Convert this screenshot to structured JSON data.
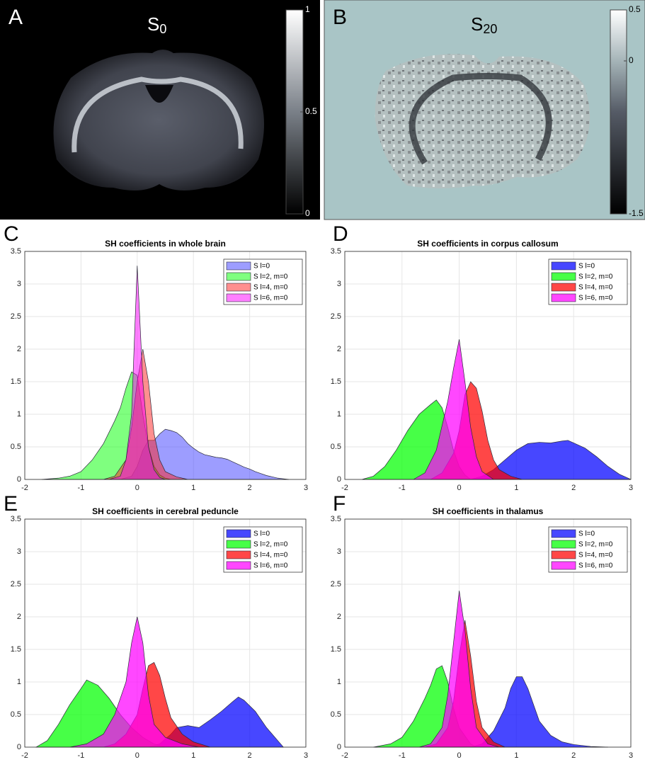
{
  "images": [
    {
      "panel_label": "A",
      "title": {
        "base": "S",
        "sub": "0"
      },
      "colorbar": {
        "lim": [
          0,
          1
        ],
        "ticks": [
          0,
          0.5,
          1
        ]
      }
    },
    {
      "panel_label": "B",
      "title": {
        "base": "S",
        "sub": "20"
      },
      "colorbar": {
        "lim": [
          -1.5,
          0.5
        ],
        "ticks": [
          -1.5,
          0,
          0.5
        ]
      }
    }
  ],
  "chart_data": [
    {
      "type": "area",
      "panel_label": "C",
      "title": "SH coefficients in whole brain",
      "fill_opacity": 0.5,
      "xlim": [
        -2,
        3
      ],
      "xticks": [
        -2,
        -1,
        0,
        1,
        2,
        3
      ],
      "ylim": [
        0,
        3.5
      ],
      "yticks": [
        0,
        0.5,
        1,
        1.5,
        2,
        2.5,
        3,
        3.5
      ],
      "grid": true,
      "legend": "upper right",
      "series": [
        {
          "name": "S l=0",
          "color": "#3c3cff",
          "x": [
            -0.3,
            -0.1,
            0,
            0.1,
            0.2,
            0.3,
            0.4,
            0.5,
            0.6,
            0.7,
            0.8,
            0.9,
            1.0,
            1.1,
            1.2,
            1.3,
            1.4,
            1.5,
            1.6,
            1.7,
            1.8,
            1.9,
            2.0,
            2.1,
            2.2,
            2.3,
            2.4,
            2.5,
            2.6,
            2.7
          ],
          "values": [
            0,
            0.05,
            0.2,
            0.45,
            0.6,
            0.6,
            0.7,
            0.77,
            0.75,
            0.72,
            0.65,
            0.55,
            0.48,
            0.42,
            0.38,
            0.36,
            0.34,
            0.33,
            0.31,
            0.27,
            0.23,
            0.19,
            0.16,
            0.12,
            0.09,
            0.06,
            0.04,
            0.02,
            0.01,
            0
          ]
        },
        {
          "name": "S l=2, m=0",
          "color": "#00ff00",
          "x": [
            -1.7,
            -1.4,
            -1.2,
            -1.0,
            -0.8,
            -0.6,
            -0.4,
            -0.3,
            -0.2,
            -0.1,
            0,
            0.1,
            0.2,
            0.3,
            0.4,
            0.5,
            0.6
          ],
          "values": [
            0,
            0.02,
            0.05,
            0.12,
            0.3,
            0.55,
            0.9,
            1.1,
            1.4,
            1.65,
            1.6,
            1.0,
            0.5,
            0.2,
            0.07,
            0.02,
            0
          ]
        },
        {
          "name": "S l=4, m=0",
          "color": "#ff2020",
          "x": [
            -0.6,
            -0.4,
            -0.2,
            -0.1,
            0,
            0.1,
            0.2,
            0.3,
            0.4,
            0.5,
            0.7,
            0.9
          ],
          "values": [
            0,
            0.05,
            0.3,
            0.8,
            1.5,
            2.0,
            1.5,
            0.7,
            0.3,
            0.12,
            0.04,
            0
          ]
        },
        {
          "name": "S l=6, m=0",
          "color": "#ff00ff",
          "x": [
            -0.5,
            -0.3,
            -0.2,
            -0.1,
            0,
            0.1,
            0.2,
            0.3,
            0.4,
            0.5
          ],
          "values": [
            0,
            0.05,
            0.3,
            1.0,
            3.28,
            1.5,
            0.5,
            0.15,
            0.03,
            0
          ]
        }
      ]
    },
    {
      "type": "area",
      "panel_label": "D",
      "title": "SH coefficients in corpus callosum",
      "fill_opacity": 0.72,
      "xlim": [
        -2,
        3
      ],
      "xticks": [
        -2,
        -1,
        0,
        1,
        2,
        3
      ],
      "ylim": [
        0,
        3.5
      ],
      "yticks": [
        0,
        0.5,
        1,
        1.5,
        2,
        2.5,
        3,
        3.5
      ],
      "grid": true,
      "legend": "upper right",
      "series": [
        {
          "name": "S l=0",
          "color": "#0000ff",
          "x": [
            0.2,
            0.4,
            0.6,
            0.8,
            1.0,
            1.2,
            1.4,
            1.6,
            1.8,
            1.9,
            2.0,
            2.2,
            2.4,
            2.6,
            2.8,
            3.0
          ],
          "values": [
            0,
            0.05,
            0.15,
            0.3,
            0.45,
            0.55,
            0.57,
            0.56,
            0.59,
            0.6,
            0.56,
            0.48,
            0.35,
            0.2,
            0.08,
            0
          ]
        },
        {
          "name": "S l=2, m=0",
          "color": "#00ff00",
          "x": [
            -1.7,
            -1.5,
            -1.3,
            -1.1,
            -0.9,
            -0.7,
            -0.5,
            -0.4,
            -0.3,
            -0.2,
            -0.1,
            0,
            0.1,
            0.2
          ],
          "values": [
            0,
            0.05,
            0.2,
            0.45,
            0.75,
            1.0,
            1.15,
            1.22,
            1.1,
            0.8,
            0.45,
            0.2,
            0.07,
            0
          ]
        },
        {
          "name": "S l=4, m=0",
          "color": "#ff0000",
          "x": [
            -0.5,
            -0.3,
            -0.1,
            0,
            0.1,
            0.2,
            0.3,
            0.4,
            0.5,
            0.6,
            0.7,
            0.9,
            1.1
          ],
          "values": [
            0,
            0.1,
            0.4,
            0.75,
            1.3,
            1.5,
            1.4,
            1.05,
            0.6,
            0.3,
            0.15,
            0.05,
            0
          ]
        },
        {
          "name": "S l=6, m=0",
          "color": "#ff00ff",
          "x": [
            -0.8,
            -0.6,
            -0.4,
            -0.2,
            -0.1,
            0,
            0.1,
            0.2,
            0.3,
            0.4,
            0.6
          ],
          "values": [
            0,
            0.1,
            0.45,
            1.2,
            1.7,
            2.15,
            1.5,
            0.8,
            0.35,
            0.12,
            0
          ]
        }
      ]
    },
    {
      "type": "area",
      "panel_label": "E",
      "title": "SH coefficients in cerebral peduncle",
      "fill_opacity": 0.72,
      "xlim": [
        -2,
        3
      ],
      "xticks": [
        -2,
        -1,
        0,
        1,
        2,
        3
      ],
      "ylim": [
        0,
        3.5
      ],
      "yticks": [
        0,
        0.5,
        1,
        1.5,
        2,
        2.5,
        3,
        3.5
      ],
      "grid": true,
      "legend": "upper right",
      "series": [
        {
          "name": "S l=0",
          "color": "#0000ff",
          "x": [
            0.2,
            0.4,
            0.6,
            0.7,
            0.9,
            1.1,
            1.3,
            1.5,
            1.7,
            1.8,
            1.9,
            2.1,
            2.3,
            2.5,
            2.6
          ],
          "values": [
            0,
            0.05,
            0.2,
            0.3,
            0.33,
            0.3,
            0.42,
            0.55,
            0.7,
            0.77,
            0.72,
            0.55,
            0.3,
            0.1,
            0
          ]
        },
        {
          "name": "S l=2, m=0",
          "color": "#00ff00",
          "x": [
            -1.8,
            -1.6,
            -1.4,
            -1.2,
            -1.0,
            -0.9,
            -0.7,
            -0.5,
            -0.3,
            -0.1,
            0.1,
            0.3,
            0.5
          ],
          "values": [
            0,
            0.1,
            0.35,
            0.65,
            0.9,
            1.03,
            0.95,
            0.75,
            0.5,
            0.3,
            0.15,
            0.05,
            0
          ]
        },
        {
          "name": "S l=4, m=0",
          "color": "#ff0000",
          "x": [
            -0.6,
            -0.4,
            -0.2,
            0,
            0.1,
            0.2,
            0.3,
            0.4,
            0.5,
            0.6,
            0.8,
            1.0,
            1.3
          ],
          "values": [
            0,
            0.05,
            0.2,
            0.5,
            0.9,
            1.25,
            1.3,
            1.1,
            0.75,
            0.45,
            0.2,
            0.08,
            0
          ]
        },
        {
          "name": "S l=6, m=0",
          "color": "#ff00ff",
          "x": [
            -1.2,
            -0.9,
            -0.6,
            -0.4,
            -0.2,
            -0.1,
            0,
            0.1,
            0.2,
            0.3,
            0.5,
            0.8,
            1.1
          ],
          "values": [
            0,
            0.05,
            0.2,
            0.5,
            1.0,
            1.6,
            2.0,
            1.6,
            0.8,
            0.35,
            0.15,
            0.05,
            0
          ]
        }
      ]
    },
    {
      "type": "area",
      "panel_label": "F",
      "title": "SH coefficients in thalamus",
      "fill_opacity": 0.72,
      "xlim": [
        -2,
        3
      ],
      "xticks": [
        -2,
        -1,
        0,
        1,
        2,
        3
      ],
      "ylim": [
        0,
        3.5
      ],
      "yticks": [
        0,
        0.5,
        1,
        1.5,
        2,
        2.5,
        3,
        3.5
      ],
      "grid": true,
      "legend": "upper right",
      "series": [
        {
          "name": "S l=0",
          "color": "#0000ff",
          "x": [
            0.2,
            0.4,
            0.6,
            0.8,
            0.9,
            1.0,
            1.1,
            1.2,
            1.3,
            1.4,
            1.6,
            1.8,
            2.0,
            2.3,
            2.6
          ],
          "values": [
            0,
            0.05,
            0.25,
            0.6,
            0.9,
            1.08,
            1.08,
            0.9,
            0.65,
            0.4,
            0.18,
            0.08,
            0.04,
            0.01,
            0
          ]
        },
        {
          "name": "S l=2, m=0",
          "color": "#00ff00",
          "x": [
            -1.5,
            -1.2,
            -1.0,
            -0.8,
            -0.6,
            -0.5,
            -0.4,
            -0.3,
            -0.2,
            -0.1,
            0,
            0.2,
            0.3
          ],
          "values": [
            0,
            0.05,
            0.15,
            0.4,
            0.75,
            0.95,
            1.2,
            1.25,
            1.0,
            0.6,
            0.3,
            0.05,
            0
          ]
        },
        {
          "name": "S l=4, m=0",
          "color": "#ff0000",
          "x": [
            -0.6,
            -0.4,
            -0.2,
            -0.1,
            0,
            0.1,
            0.2,
            0.3,
            0.4,
            0.6,
            0.8
          ],
          "values": [
            0,
            0.05,
            0.3,
            0.7,
            1.4,
            1.95,
            1.4,
            0.7,
            0.3,
            0.08,
            0
          ]
        },
        {
          "name": "S l=6, m=0",
          "color": "#ff00ff",
          "x": [
            -0.7,
            -0.5,
            -0.3,
            -0.2,
            -0.1,
            0,
            0.1,
            0.2,
            0.3,
            0.5,
            0.7
          ],
          "values": [
            0,
            0.05,
            0.3,
            0.8,
            1.6,
            2.4,
            1.8,
            0.9,
            0.3,
            0.05,
            0
          ]
        }
      ]
    }
  ]
}
